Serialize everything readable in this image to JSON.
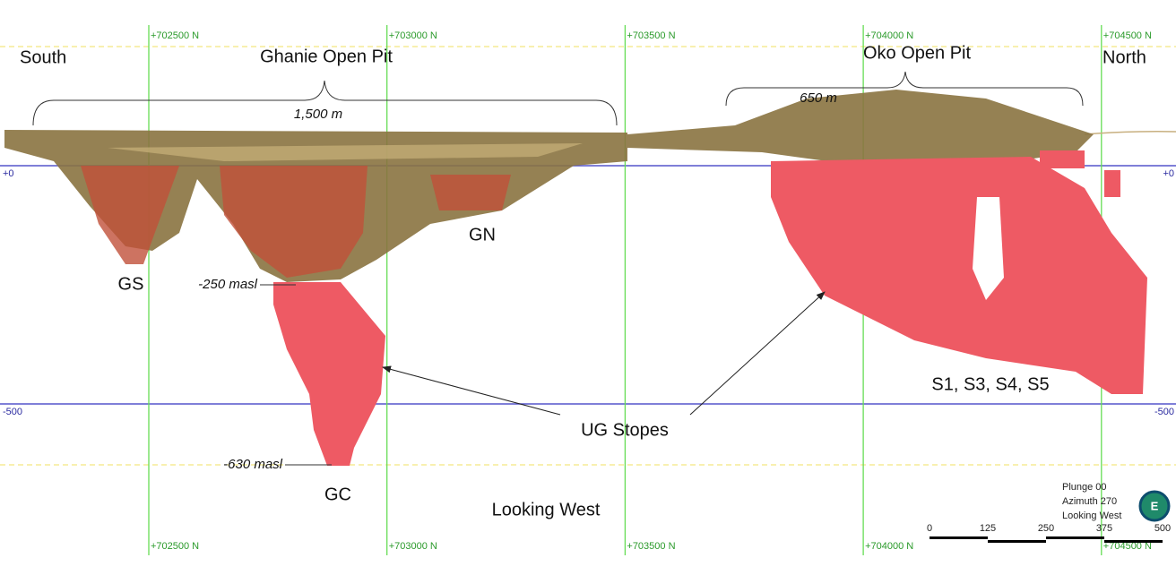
{
  "grid": {
    "northings": [
      "+702500 N",
      "+703000 N",
      "+703500 N",
      "+704000 N",
      "+704500 N"
    ],
    "elevations": [
      "+0",
      "-500"
    ]
  },
  "labels": {
    "south": "South",
    "north": "North",
    "ghanie_pit": "Ghanie Open Pit",
    "ghanie_width": "1,500 m",
    "oko_pit": "Oko Open Pit",
    "oko_width": "650 m",
    "gs": "GS",
    "gn": "GN",
    "gc": "GC",
    "top_elevation": "-250 masl",
    "bottom_elevation": "-630 masl",
    "ug_stopes": "UG Stopes",
    "oko_stopes": "S1, S3, S4, S5",
    "view": "Looking West"
  },
  "legend": {
    "plunge": "Plunge 00",
    "azimuth": "Azimuth 270",
    "view": "Looking West",
    "compass": "E"
  },
  "scale_bar": {
    "ticks": [
      0,
      125,
      250,
      375,
      500
    ]
  }
}
